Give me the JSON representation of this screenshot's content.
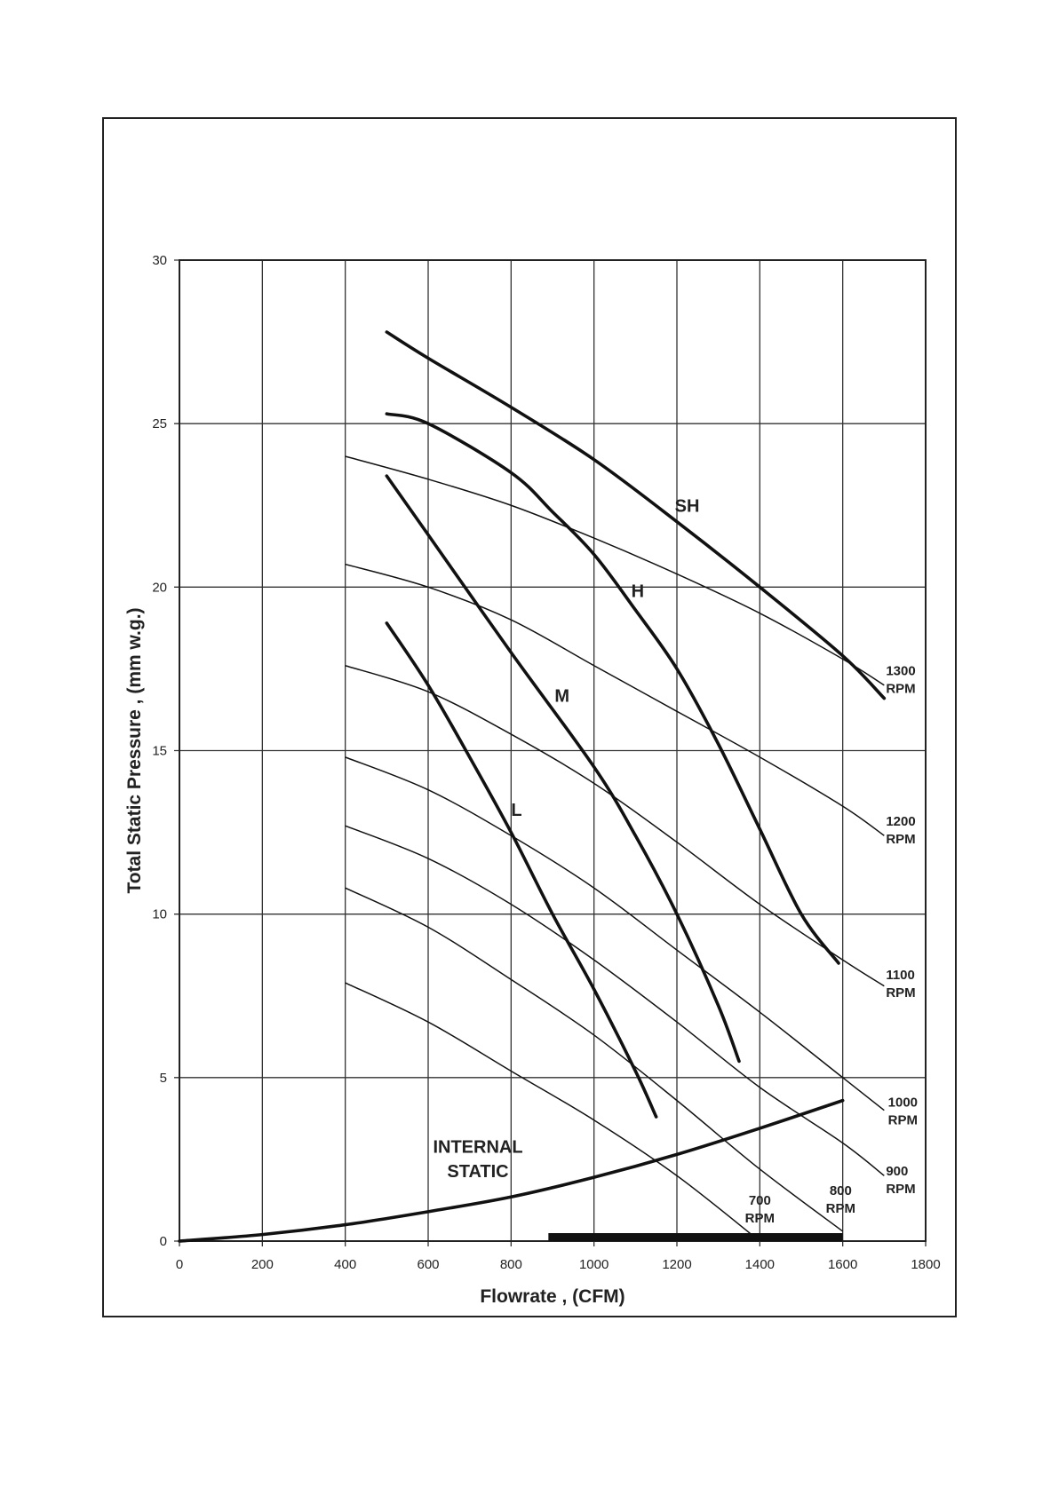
{
  "chart_data": {
    "type": "line",
    "title": "",
    "xlabel": "Flowrate , (CFM)",
    "ylabel": "Total Static Pressure , (mm w.g.)",
    "xlim": [
      0,
      1800
    ],
    "ylim": [
      0,
      30
    ],
    "xticks": [
      0,
      200,
      400,
      600,
      800,
      1000,
      1200,
      1400,
      1600,
      1800
    ],
    "yticks": [
      0,
      5,
      10,
      15,
      20,
      25,
      30
    ],
    "grid": true,
    "fan_curves": [
      {
        "name": "SH",
        "x": [
          500,
          600,
          800,
          1000,
          1200,
          1400,
          1600,
          1700
        ],
        "y": [
          27.8,
          27.0,
          25.5,
          23.9,
          22.0,
          20.0,
          17.9,
          16.6
        ]
      },
      {
        "name": "H",
        "x": [
          500,
          600,
          800,
          900,
          1000,
          1100,
          1200,
          1300,
          1400,
          1500,
          1590
        ],
        "y": [
          25.3,
          25.0,
          23.5,
          22.3,
          21.0,
          19.3,
          17.5,
          15.2,
          12.6,
          10.0,
          8.5
        ]
      },
      {
        "name": "M",
        "x": [
          500,
          600,
          800,
          1000,
          1100,
          1200,
          1300,
          1350
        ],
        "y": [
          23.4,
          21.6,
          18.0,
          14.5,
          12.4,
          10.0,
          7.2,
          5.5
        ]
      },
      {
        "name": "L",
        "x": [
          500,
          600,
          700,
          800,
          900,
          1000,
          1100,
          1150
        ],
        "y": [
          18.9,
          17.0,
          14.8,
          12.5,
          10.0,
          7.7,
          5.2,
          3.8
        ]
      }
    ],
    "rpm_curves": [
      {
        "name": "1300",
        "unit": "RPM",
        "x": [
          400,
          600,
          800,
          1000,
          1200,
          1400,
          1600,
          1700
        ],
        "y": [
          24.0,
          23.3,
          22.5,
          21.5,
          20.4,
          19.2,
          17.8,
          17.0
        ]
      },
      {
        "name": "1200",
        "unit": "RPM",
        "x": [
          400,
          600,
          800,
          1000,
          1200,
          1400,
          1600,
          1700
        ],
        "y": [
          20.7,
          20.0,
          19.0,
          17.6,
          16.2,
          14.8,
          13.3,
          12.4
        ]
      },
      {
        "name": "1100",
        "unit": "RPM",
        "x": [
          400,
          600,
          800,
          1000,
          1200,
          1400,
          1600,
          1700
        ],
        "y": [
          17.6,
          16.8,
          15.5,
          14.0,
          12.2,
          10.3,
          8.6,
          7.8
        ]
      },
      {
        "name": "1000",
        "unit": "RPM",
        "x": [
          400,
          600,
          800,
          1000,
          1200,
          1400,
          1600,
          1700
        ],
        "y": [
          14.8,
          13.8,
          12.4,
          10.8,
          8.9,
          7.0,
          5.0,
          4.0
        ]
      },
      {
        "name": "900",
        "unit": "RPM",
        "x": [
          400,
          600,
          800,
          1000,
          1200,
          1400,
          1600,
          1700
        ],
        "y": [
          12.7,
          11.7,
          10.3,
          8.6,
          6.7,
          4.7,
          3.0,
          2.0
        ]
      },
      {
        "name": "800",
        "unit": "RPM",
        "x": [
          400,
          600,
          800,
          1000,
          1200,
          1400,
          1600
        ],
        "y": [
          10.8,
          9.6,
          8.0,
          6.3,
          4.3,
          2.2,
          0.3
        ]
      },
      {
        "name": "700",
        "unit": "RPM",
        "x": [
          400,
          600,
          800,
          1000,
          1200,
          1390
        ],
        "y": [
          7.9,
          6.7,
          5.2,
          3.7,
          2.0,
          0.1
        ]
      }
    ],
    "internal_static": {
      "name_line1": "INTERNAL",
      "name_line2": "STATIC",
      "x": [
        0,
        200,
        400,
        600,
        800,
        1000,
        1200,
        1400,
        1600
      ],
      "y": [
        0,
        0.2,
        0.5,
        0.9,
        1.35,
        1.95,
        2.65,
        3.45,
        4.3
      ]
    },
    "operating_range_bar": {
      "x_start": 890,
      "x_end": 1600,
      "y": 0
    }
  }
}
